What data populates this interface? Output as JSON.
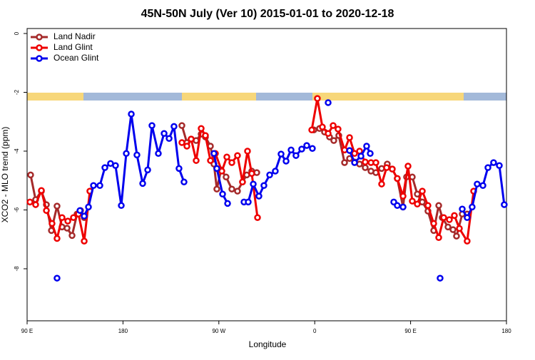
{
  "chart_data": {
    "type": "line",
    "title": "45N-50N July (Ver 10)   2015-01-01 to 2020-12-18",
    "x_label": "Longitude",
    "y_label": "XCO2 - MLO trend (ppm)",
    "xlim": [
      90,
      540
    ],
    "ylim": [
      -9.77,
      0.17
    ],
    "xticks": [
      {
        "value": 90,
        "label": "90 E"
      },
      {
        "value": 180,
        "label": "180"
      },
      {
        "value": 270,
        "label": "90 W"
      },
      {
        "value": 360,
        "label": "0"
      },
      {
        "value": 450,
        "label": "90 E"
      },
      {
        "value": 540,
        "label": "180"
      }
    ],
    "yticks": [
      0,
      -2,
      -4,
      -6,
      -8
    ],
    "legend": "top-left",
    "series": [
      {
        "name": "Land Nadir",
        "color": "#a52a2a",
        "x": [
          93.3,
          98.0,
          103.4,
          108.1,
          112.8,
          118.1,
          122.8,
          127.5,
          132.2,
          136.9,
          140.2,
          143.6,
          null,
          235.3,
          240.0,
          244.0,
          248.7,
          253.4,
          257.4,
          262.1,
          265.4,
          268.1,
          272.1,
          276.8,
          282.2,
          287.5,
          292.2,
          296.2,
          300.9,
          305.6,
          null,
          359.2,
          364.5,
          369.2,
          373.9,
          377.9,
          382.6,
          388.0,
          392.7,
          397.4,
          402.1,
          407.4,
          412.8,
          417.4,
          422.8,
          428.1,
          432.8,
          437.5,
          442.9,
          446.2,
          451.6,
          456.3,
          461.0,
          466.3,
          471.7,
          476.4,
          479.7,
          485.1,
          489.8,
          493.1,
          498.5,
          503.1
        ],
        "values": [
          -4.81,
          -5.65,
          -5.36,
          -5.82,
          -6.7,
          -5.87,
          -6.58,
          -6.62,
          -6.87,
          -6.14,
          -6.02,
          -6.26,
          null,
          -3.13,
          -3.71,
          -3.59,
          -3.64,
          -3.42,
          -3.52,
          -3.83,
          -4.44,
          -5.29,
          -4.64,
          -4.88,
          -5.29,
          -5.36,
          -5.05,
          -4.81,
          -4.68,
          -4.73,
          null,
          -3.28,
          -3.23,
          -3.35,
          -3.52,
          -3.64,
          -3.47,
          -4.39,
          -4.25,
          -4.37,
          -4.44,
          -4.56,
          -4.68,
          -4.73,
          -4.59,
          -4.44,
          -4.61,
          -4.93,
          -5.9,
          -4.88,
          -4.88,
          -5.46,
          -5.73,
          -6.04,
          -6.7,
          -5.85,
          -6.26,
          -6.58,
          -6.67,
          -6.89,
          -6.14,
          -6.14
        ]
      },
      {
        "name": "Land Glint",
        "color": "#ee0000",
        "x": [
          92.7,
          98.0,
          103.4,
          108.1,
          113.4,
          118.1,
          122.8,
          128.2,
          133.5,
          138.2,
          143.6,
          148.9,
          null,
          235.3,
          240.0,
          244.0,
          248.7,
          253.4,
          257.4,
          262.1,
          266.8,
          272.8,
          277.5,
          282.2,
          287.5,
          292.2,
          296.9,
          300.9,
          306.3,
          null,
          357.2,
          362.5,
          367.2,
          372.6,
          377.3,
          381.9,
          388.0,
          392.7,
          397.4,
          402.1,
          407.4,
          412.8,
          417.4,
          422.8,
          427.5,
          432.8,
          437.5,
          442.9,
          447.6,
          451.6,
          456.3,
          461.0,
          466.3,
          471.7,
          476.4,
          481.1,
          486.4,
          491.1,
          495.8,
          503.1,
          509.2
        ],
        "values": [
          -5.73,
          -5.82,
          -5.34,
          -6.02,
          -6.46,
          -6.97,
          -6.26,
          -6.38,
          -6.26,
          -6.14,
          -7.06,
          -5.36,
          null,
          -3.71,
          -3.83,
          -3.59,
          -4.32,
          -3.23,
          -3.47,
          -4.32,
          -4.08,
          -4.68,
          -4.2,
          -4.39,
          -4.15,
          -5.05,
          -4.0,
          -4.76,
          -6.26,
          null,
          -3.28,
          -2.21,
          -3.18,
          -3.4,
          -3.13,
          -3.25,
          -3.96,
          -3.54,
          -4.08,
          -4.0,
          -4.37,
          -4.39,
          -4.39,
          -5.12,
          -4.56,
          -4.61,
          -4.93,
          -5.53,
          -4.51,
          -5.7,
          -5.8,
          -5.36,
          -5.85,
          -6.46,
          -6.94,
          -6.26,
          -6.33,
          -6.19,
          -6.63,
          -7.06,
          -5.36
        ]
      },
      {
        "name": "Ocean Glint",
        "color": "#0000ee",
        "x": [
          118.1,
          null,
          139.6,
          143.6,
          147.6,
          152.3,
          158.3,
          163.0,
          168.3,
          173.0,
          178.4,
          183.1,
          187.8,
          193.1,
          198.5,
          203.2,
          207.2,
          213.2,
          218.6,
          223.3,
          227.9,
          232.6,
          237.3,
          null,
          265.4,
          268.1,
          273.5,
          278.2,
          null,
          293.6,
          297.6,
          302.3,
          307.6,
          312.3,
          317.7,
          323.0,
          328.4,
          333.1,
          337.8,
          342.4,
          347.8,
          352.5,
          357.8,
          null,
          372.6,
          null,
          392.7,
          397.4,
          403.4,
          408.7,
          412.1,
          null,
          434.2,
          437.5,
          442.9,
          null,
          477.7,
          null,
          498.5,
          503.1,
          507.8,
          512.5,
          517.9,
          522.6,
          527.9,
          533.3,
          537.9
        ],
        "values": [
          -8.32,
          null,
          -6.02,
          -6.21,
          -5.9,
          -5.17,
          -5.17,
          -4.56,
          -4.42,
          -4.49,
          -5.85,
          -4.08,
          -2.74,
          -4.13,
          -5.1,
          -4.64,
          -3.13,
          -4.08,
          -3.4,
          -3.57,
          -3.16,
          -4.59,
          -5.05,
          null,
          -4.08,
          -4.59,
          -5.46,
          -5.78,
          null,
          -5.73,
          -5.73,
          -5.12,
          -5.53,
          -5.17,
          -4.81,
          -4.68,
          -4.1,
          -4.34,
          -3.96,
          -4.15,
          -3.93,
          -3.81,
          -3.91,
          null,
          -2.35,
          null,
          -3.98,
          -4.39,
          -4.17,
          -3.83,
          -4.08,
          null,
          -5.73,
          -5.85,
          -5.9,
          null,
          -8.32,
          null,
          -5.97,
          -6.26,
          -5.9,
          -5.12,
          -5.17,
          -4.56,
          -4.39,
          -4.49,
          -5.82
        ]
      }
    ]
  }
}
